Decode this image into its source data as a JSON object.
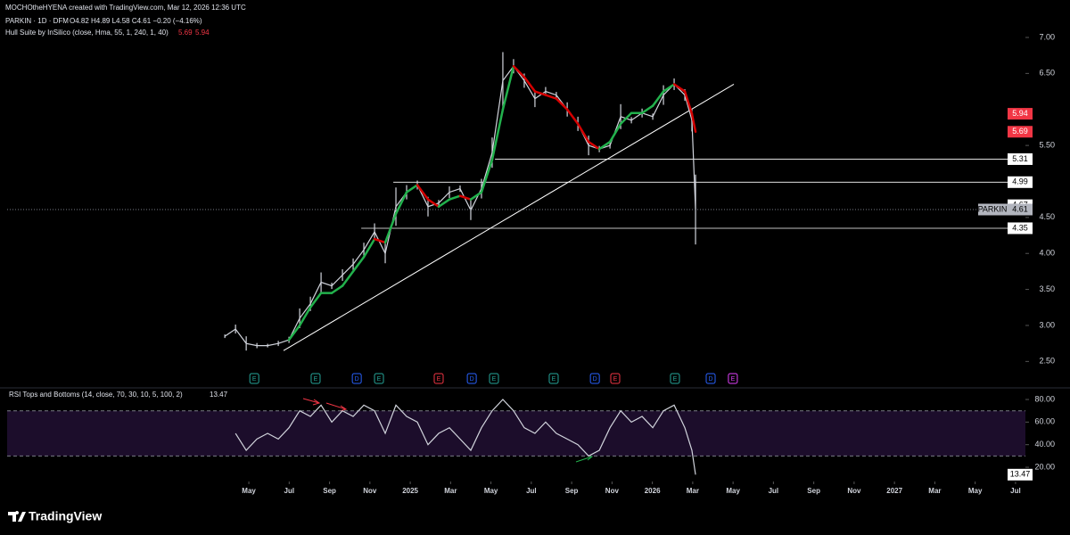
{
  "header": {
    "credit": "MOCHOtheHYENA created with TradingView.com, Mar 12, 2026 12:36 UTC",
    "logo": "TradingView"
  },
  "chart_data": [
    {
      "type": "line",
      "title": "PARKIN · 1D · DFM",
      "subtitle": "O4.82 H4.89 L4.58 C4.61 −0.20 (−4.16%)",
      "xlim": [
        -7.98,
        42.49
      ],
      "ylim": [
        2.17,
        7.52
      ],
      "yticks": [
        {
          "value": 7,
          "label": "7.00"
        },
        {
          "value": 6.5,
          "label": "6.50"
        },
        {
          "value": 5.5,
          "label": "5.50"
        },
        {
          "value": 4.5,
          "label": "4.50"
        },
        {
          "value": 4,
          "label": "4.00"
        },
        {
          "value": 3.5,
          "label": "3.50"
        },
        {
          "value": 3,
          "label": "3.00"
        },
        {
          "value": 2.5,
          "label": "2.50"
        }
      ],
      "x": [
        2.81,
        3.34,
        3.87,
        4.4,
        4.93,
        5.46,
        5.99,
        6.52,
        7.05,
        7.58,
        8.11,
        8.64,
        9.17,
        9.7,
        10.23,
        10.76,
        11.29,
        11.82,
        12.35,
        12.88,
        13.41,
        13.94,
        14.47,
        15.0,
        15.53,
        16.06,
        16.59,
        17.12,
        17.65,
        18.18,
        18.71,
        19.24,
        19.78,
        20.31,
        20.84,
        21.37,
        21.9,
        22.43,
        22.96,
        23.49,
        24.02,
        24.55,
        25.08,
        25.61,
        25.96,
        26.14
      ],
      "series": [
        {
          "name": "PARKIN",
          "color": "#d1d4dc",
          "values": [
            2.85,
            2.95,
            2.75,
            2.72,
            2.72,
            2.75,
            2.8,
            3.1,
            3.3,
            3.6,
            3.55,
            3.7,
            3.85,
            4.05,
            4.3,
            4.0,
            4.65,
            4.85,
            4.95,
            4.65,
            4.7,
            4.85,
            4.9,
            4.6,
            4.9,
            5.4,
            6.4,
            6.6,
            6.4,
            6.15,
            6.25,
            6.2,
            6.0,
            5.8,
            5.5,
            5.45,
            5.5,
            5.9,
            5.85,
            5.95,
            5.9,
            6.2,
            6.35,
            6.2,
            5.85,
            4.61
          ]
        }
      ],
      "hull": {
        "name": "Hull Suite by InSilico (close, Hma, 55, 1, 240, 1, 40)",
        "up_color": "#22b14c",
        "down_color": "#d50000",
        "legend_color": "#f23645",
        "legend_values": [
          5.69,
          5.94
        ],
        "values": [
          null,
          null,
          null,
          null,
          null,
          null,
          2.8,
          3.0,
          3.25,
          3.45,
          3.45,
          3.55,
          3.75,
          3.95,
          4.2,
          4.15,
          4.55,
          4.85,
          4.95,
          4.75,
          4.65,
          4.75,
          4.8,
          4.75,
          4.85,
          5.3,
          6.0,
          6.6,
          6.45,
          6.25,
          6.2,
          6.15,
          6.0,
          5.8,
          5.55,
          5.45,
          5.55,
          5.8,
          5.95,
          5.95,
          6.05,
          6.25,
          6.35,
          6.25,
          5.94,
          5.69
        ]
      },
      "trendline": {
        "x": [
          5.72,
          28.04
        ],
        "values": [
          2.65,
          6.35
        ],
        "color": "#ffffff"
      },
      "levels": [
        5.31,
        4.99,
        4.67,
        4.35
      ],
      "level_starts": [
        16.2,
        11.16,
        null,
        9.57
      ],
      "level_color": "#ffffff",
      "events": [
        {
          "label": "E",
          "x": 4.27,
          "color": "#26a69a"
        },
        {
          "label": "E",
          "x": 7.31,
          "color": "#26a69a"
        },
        {
          "label": "D",
          "x": 9.35,
          "color": "#2962ff"
        },
        {
          "label": "E",
          "x": 10.45,
          "color": "#26a69a"
        },
        {
          "label": "E",
          "x": 13.41,
          "color": "#f23645"
        },
        {
          "label": "D",
          "x": 15.05,
          "color": "#2962ff"
        },
        {
          "label": "E",
          "x": 16.15,
          "color": "#26a69a"
        },
        {
          "label": "E",
          "x": 19.11,
          "color": "#26a69a"
        },
        {
          "label": "D",
          "x": 21.15,
          "color": "#2962ff"
        },
        {
          "label": "E",
          "x": 22.16,
          "color": "#f23645"
        },
        {
          "label": "E",
          "x": 25.12,
          "color": "#26a69a"
        },
        {
          "label": "D",
          "x": 26.89,
          "color": "#2962ff"
        },
        {
          "label": "E",
          "x": 27.99,
          "color": "#e040fb"
        }
      ]
    },
    {
      "type": "line",
      "title": "RSI Tops and Bottoms (14, close, 70, 30, 10, 5, 100, 2)",
      "xlim": [
        -7.98,
        42.49
      ],
      "ylim": [
        7.4,
        88.7
      ],
      "yticks": [
        {
          "value": 80,
          "label": "80.00"
        },
        {
          "value": 60,
          "label": "60.00"
        },
        {
          "value": 40,
          "label": "40.00"
        },
        {
          "value": 20,
          "label": "20.00"
        }
      ],
      "bands": [
        30,
        70
      ],
      "band_color": "#1c0d2b",
      "xticks": [
        {
          "value": 4,
          "label": "May"
        },
        {
          "value": 6,
          "label": "Jul"
        },
        {
          "value": 8,
          "label": "Sep"
        },
        {
          "value": 10,
          "label": "Nov"
        },
        {
          "value": 12,
          "label": "2025"
        },
        {
          "value": 14,
          "label": "Mar"
        },
        {
          "value": 16,
          "label": "May"
        },
        {
          "value": 18,
          "label": "Jul"
        },
        {
          "value": 20,
          "label": "Sep"
        },
        {
          "value": 22,
          "label": "Nov"
        },
        {
          "value": 24,
          "label": "2026"
        },
        {
          "value": 26,
          "label": "Mar"
        },
        {
          "value": 28,
          "label": "May"
        },
        {
          "value": 30,
          "label": "Jul"
        },
        {
          "value": 32,
          "label": "Sep"
        },
        {
          "value": 34,
          "label": "Nov"
        },
        {
          "value": 36,
          "label": "2027"
        },
        {
          "value": 38,
          "label": "Mar"
        },
        {
          "value": 40,
          "label": "May"
        },
        {
          "value": 42,
          "label": "Jul"
        }
      ],
      "x": [
        2.81,
        3.34,
        3.87,
        4.4,
        4.93,
        5.46,
        5.99,
        6.52,
        7.05,
        7.58,
        8.11,
        8.64,
        9.17,
        9.7,
        10.23,
        10.76,
        11.29,
        11.82,
        12.35,
        12.88,
        13.41,
        13.94,
        14.47,
        15.0,
        15.53,
        16.06,
        16.59,
        17.12,
        17.65,
        18.18,
        18.71,
        19.24,
        19.78,
        20.31,
        20.84,
        21.37,
        21.9,
        22.43,
        22.96,
        23.49,
        24.02,
        24.55,
        25.08,
        25.61,
        25.96,
        26.14
      ],
      "series": [
        {
          "color": "#d1d4dc",
          "values": [
            null,
            50,
            35,
            45,
            50,
            45,
            55,
            70,
            65,
            75,
            60,
            70,
            65,
            75,
            70,
            50,
            75,
            65,
            60,
            40,
            50,
            55,
            45,
            35,
            55,
            70,
            80,
            70,
            55,
            50,
            60,
            50,
            45,
            40,
            30,
            35,
            55,
            70,
            60,
            65,
            55,
            70,
            75,
            55,
            35,
            13.47
          ]
        }
      ]
    }
  ]
}
